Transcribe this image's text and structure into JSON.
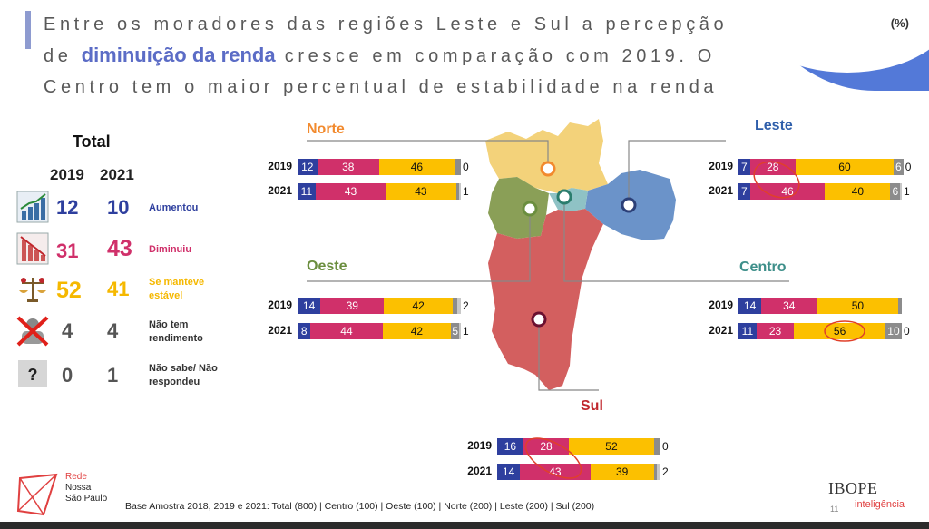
{
  "title": {
    "line1": "Entre os moradores das regiões Leste e Sul a percepção",
    "line2_prefix": "de",
    "line2_highlight": "diminuição da renda",
    "line2_suffix": "cresce em comparação com 2019. O",
    "line3": "Centro tem o maior percentual de estabilidade na renda"
  },
  "unit_label": "(%)",
  "total": {
    "label": "Total",
    "years": [
      "2019",
      "2021"
    ],
    "rows": [
      {
        "icon": "chart-up-icon",
        "v2019": "12",
        "v2021": "10",
        "label": "Aumentou",
        "color": "#2e3f9e"
      },
      {
        "icon": "chart-down-icon",
        "v2019": "31",
        "v2021": "43",
        "label": "Diminuiu",
        "color": "#d0306a"
      },
      {
        "icon": "scale-icon",
        "v2019": "52",
        "v2021": "41",
        "label": "Se manteve estável",
        "color": "#f5b800"
      },
      {
        "icon": "no-income-icon",
        "v2019": "4",
        "v2021": "4",
        "label": "Não tem rendimento",
        "color": "#555555"
      },
      {
        "icon": "question-icon",
        "v2019": "0",
        "v2021": "1",
        "label": "Não sabe/ Não respondeu",
        "color": "#555555"
      }
    ]
  },
  "colors": {
    "aumentou": "#2e3f9e",
    "diminuiu": "#d0306a",
    "estavel": "#fcc000",
    "nao_tem": "#8c8c8c",
    "nao_sabe": "#c8c8c8"
  },
  "chart_data": [
    {
      "type": "bar",
      "title": "Norte",
      "title_color": "#f28a2e",
      "categories": [
        "2019",
        "2021"
      ],
      "series": [
        {
          "name": "Aumentou",
          "values": [
            12,
            11
          ]
        },
        {
          "name": "Diminuiu",
          "values": [
            38,
            43
          ]
        },
        {
          "name": "Se manteve estável",
          "values": [
            46,
            43
          ]
        },
        {
          "name": "Não tem rendimento",
          "values": [
            4,
            2
          ]
        },
        {
          "name": "Não sabe/ Não respondeu",
          "values": [
            0,
            1
          ]
        }
      ],
      "end_labels": [
        "0",
        "1"
      ]
    },
    {
      "type": "bar",
      "title": "Leste",
      "title_color": "#2e5eaa",
      "categories": [
        "2019",
        "2021"
      ],
      "series": [
        {
          "name": "Aumentou",
          "values": [
            7,
            7
          ]
        },
        {
          "name": "Diminuiu",
          "values": [
            28,
            46
          ]
        },
        {
          "name": "Se manteve estável",
          "values": [
            60,
            40
          ]
        },
        {
          "name": "Não tem rendimento",
          "values": [
            6,
            6
          ]
        },
        {
          "name": "Não sabe/ Não respondeu",
          "values": [
            0,
            1
          ]
        }
      ],
      "end_labels": [
        "0",
        "1"
      ]
    },
    {
      "type": "bar",
      "title": "Oeste",
      "title_color": "#6b8e3e",
      "categories": [
        "2019",
        "2021"
      ],
      "series": [
        {
          "name": "Aumentou",
          "values": [
            14,
            8
          ]
        },
        {
          "name": "Diminuiu",
          "values": [
            39,
            44
          ]
        },
        {
          "name": "Se manteve estável",
          "values": [
            42,
            42
          ]
        },
        {
          "name": "Não tem rendimento",
          "values": [
            3,
            5
          ]
        },
        {
          "name": "Não sabe/ Não respondeu",
          "values": [
            2,
            1
          ]
        }
      ],
      "end_labels": [
        "2",
        "1"
      ]
    },
    {
      "type": "bar",
      "title": "Centro",
      "title_color": "#3e8f8a",
      "categories": [
        "2019",
        "2021"
      ],
      "series": [
        {
          "name": "Aumentou",
          "values": [
            14,
            11
          ]
        },
        {
          "name": "Diminuiu",
          "values": [
            34,
            23
          ]
        },
        {
          "name": "Se manteve estável",
          "values": [
            50,
            56
          ]
        },
        {
          "name": "Não tem rendimento",
          "values": [
            2,
            10
          ]
        },
        {
          "name": "Não sabe/ Não respondeu",
          "values": [
            0,
            0
          ]
        }
      ],
      "end_labels": [
        "",
        "0"
      ]
    },
    {
      "type": "bar",
      "title": "Sul",
      "title_color": "#c0272d",
      "categories": [
        "2019",
        "2021"
      ],
      "series": [
        {
          "name": "Aumentou",
          "values": [
            16,
            14
          ]
        },
        {
          "name": "Diminuiu",
          "values": [
            28,
            43
          ]
        },
        {
          "name": "Se manteve estável",
          "values": [
            52,
            39
          ]
        },
        {
          "name": "Não tem rendimento",
          "values": [
            4,
            2
          ]
        },
        {
          "name": "Não sabe/ Não respondeu",
          "values": [
            0,
            2
          ]
        }
      ],
      "end_labels": [
        "0",
        "2"
      ]
    }
  ],
  "footer": "Base Amostra 2018, 2019 e 2021: Total (800) | Centro (100) | Oeste (100) | Norte (200) | Leste (200) | Sul (200)",
  "logo": {
    "line1": "Rede",
    "line2": "Nossa",
    "line3": "São Paulo"
  },
  "brand": {
    "name": "IBOPE",
    "sub": "inteligência"
  },
  "page_number": "11"
}
